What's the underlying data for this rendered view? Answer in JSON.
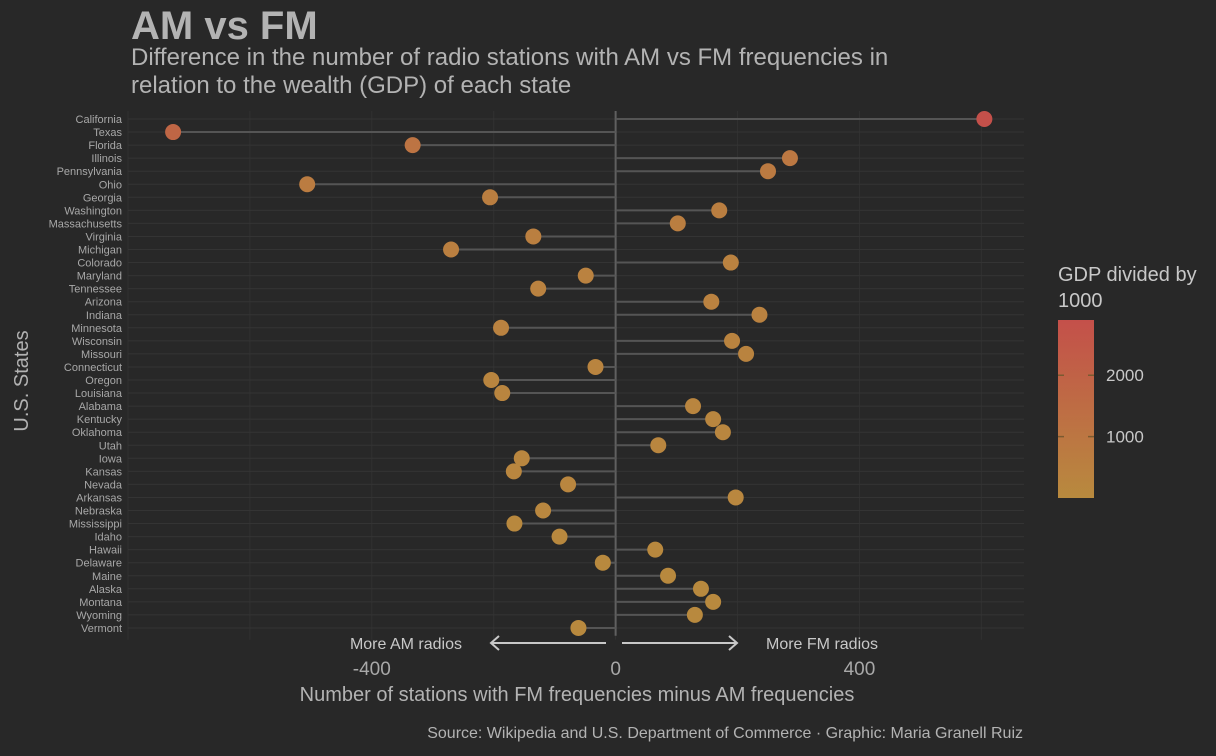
{
  "header": {
    "title": "AM vs FM",
    "subtitle": "Difference in the number of radio stations with AM vs FM frequencies in relation to the wealth (GDP) of each state"
  },
  "caption": "Source: Wikipedia and U.S. Department of Commerce · Graphic: Maria Granell Ruiz",
  "annotations": {
    "left": "More AM radios",
    "right": "More FM radios"
  },
  "legend": {
    "title": "GDP divided by 1000",
    "ticks": [
      1000,
      2000
    ],
    "range": [
      0,
      2900
    ],
    "colors": {
      "low": "#b88a3e",
      "high": "#c4504a"
    }
  },
  "colors": {
    "background": "#282828",
    "grid": "#333333",
    "segment": "#555555",
    "text": "#b3b3b3"
  },
  "chart_data": {
    "type": "lollipop",
    "xlabel": "Number of stations with FM frequencies minus AM frequencies",
    "ylabel": "U.S. States",
    "xlim": [
      -800,
      670
    ],
    "xticks": [
      -400,
      0,
      400
    ],
    "color_variable": "GDP divided by 1000",
    "points": [
      {
        "state": "California",
        "x": 605,
        "gdp": 2900
      },
      {
        "state": "Texas",
        "x": -726,
        "gdp": 1800
      },
      {
        "state": "Florida",
        "x": -333,
        "gdp": 1100
      },
      {
        "state": "Illinois",
        "x": 286,
        "gdp": 880
      },
      {
        "state": "Pennsylvania",
        "x": 250,
        "gdp": 800
      },
      {
        "state": "Ohio",
        "x": -506,
        "gdp": 690
      },
      {
        "state": "Georgia",
        "x": -206,
        "gdp": 600
      },
      {
        "state": "Washington",
        "x": 170,
        "gdp": 580
      },
      {
        "state": "Massachusetts",
        "x": 102,
        "gdp": 580
      },
      {
        "state": "Virginia",
        "x": -135,
        "gdp": 550
      },
      {
        "state": "Michigan",
        "x": -270,
        "gdp": 540
      },
      {
        "state": "Colorado",
        "x": 189,
        "gdp": 420
      },
      {
        "state": "Maryland",
        "x": -49,
        "gdp": 420
      },
      {
        "state": "Tennessee",
        "x": -127,
        "gdp": 400
      },
      {
        "state": "Arizona",
        "x": 157,
        "gdp": 380
      },
      {
        "state": "Indiana",
        "x": 236,
        "gdp": 380
      },
      {
        "state": "Minnesota",
        "x": -188,
        "gdp": 380
      },
      {
        "state": "Wisconsin",
        "x": 191,
        "gdp": 350
      },
      {
        "state": "Missouri",
        "x": 214,
        "gdp": 340
      },
      {
        "state": "Connecticut",
        "x": -33,
        "gdp": 290
      },
      {
        "state": "Oregon",
        "x": -204,
        "gdp": 250
      },
      {
        "state": "Louisiana",
        "x": -186,
        "gdp": 250
      },
      {
        "state": "Alabama",
        "x": 127,
        "gdp": 240
      },
      {
        "state": "Kentucky",
        "x": 160,
        "gdp": 220
      },
      {
        "state": "Oklahoma",
        "x": 176,
        "gdp": 200
      },
      {
        "state": "Utah",
        "x": 70,
        "gdp": 200
      },
      {
        "state": "Iowa",
        "x": -154,
        "gdp": 200
      },
      {
        "state": "Kansas",
        "x": -167,
        "gdp": 180
      },
      {
        "state": "Nevada",
        "x": -78,
        "gdp": 180
      },
      {
        "state": "Arkansas",
        "x": 197,
        "gdp": 130
      },
      {
        "state": "Nebraska",
        "x": -119,
        "gdp": 130
      },
      {
        "state": "Mississippi",
        "x": -166,
        "gdp": 110
      },
      {
        "state": "Idaho",
        "x": -92,
        "gdp": 80
      },
      {
        "state": "Hawaii",
        "x": 65,
        "gdp": 80
      },
      {
        "state": "Delaware",
        "x": -21,
        "gdp": 70
      },
      {
        "state": "Maine",
        "x": 86,
        "gdp": 65
      },
      {
        "state": "Alaska",
        "x": 140,
        "gdp": 55
      },
      {
        "state": "Montana",
        "x": 160,
        "gdp": 50
      },
      {
        "state": "Wyoming",
        "x": 130,
        "gdp": 40
      },
      {
        "state": "Vermont",
        "x": -61,
        "gdp": 30
      }
    ]
  }
}
